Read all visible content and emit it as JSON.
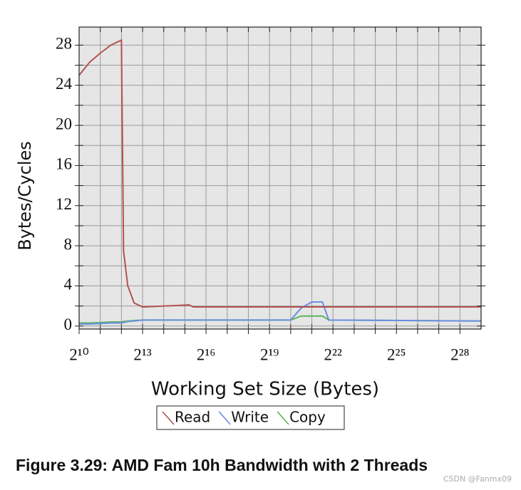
{
  "chart_data": {
    "type": "line",
    "title": "Figure 3.29: AMD Fam 10h Bandwidth with 2 Threads",
    "x_label": "Working Set Size (Bytes)",
    "y_label": "Bytes/Cycles",
    "x_scale": "log2",
    "x": [
      1024,
      1448,
      2048,
      2896,
      4096,
      4390,
      5043,
      6208,
      8192,
      37641,
      43238,
      1048576,
      1482910,
      2097152,
      2965821,
      3651400,
      536870912
    ],
    "series": [
      {
        "name": "Read",
        "color": "#b5524e",
        "values": [
          25,
          26.3,
          27.2,
          28,
          28.5,
          7.5,
          4,
          2.3,
          1.9,
          2.1,
          1.9,
          1.9,
          1.9,
          1.9,
          1.9,
          1.9,
          1.9
        ]
      },
      {
        "name": "Write",
        "color": "#6a8fe0",
        "values": [
          0.2,
          0.2,
          0.25,
          0.3,
          0.3,
          0.35,
          0.45,
          0.5,
          0.6,
          0.6,
          0.6,
          0.6,
          1.8,
          2.4,
          2.4,
          0.6,
          0.5
        ]
      },
      {
        "name": "Copy",
        "color": "#5bb35b",
        "values": [
          0.3,
          0.3,
          0.35,
          0.4,
          0.4,
          0.45,
          0.5,
          0.55,
          0.6,
          0.6,
          0.6,
          0.6,
          1.0,
          1.0,
          1.0,
          0.6,
          0.5
        ]
      }
    ],
    "xlim": [
      1024,
      536870912
    ],
    "xticks": [
      {
        "value": 1024,
        "label": "2¹⁰"
      },
      {
        "value": 8192,
        "label": "2¹³"
      },
      {
        "value": 65536,
        "label": "2¹⁶"
      },
      {
        "value": 524288,
        "label": "2¹⁹"
      },
      {
        "value": 4194304,
        "label": "2²²"
      },
      {
        "value": 33554432,
        "label": "2²⁵"
      },
      {
        "value": 268435456,
        "label": "2²⁸"
      }
    ],
    "xminorticks": [
      2048,
      4096,
      16384,
      32768,
      131072,
      262144,
      1048576,
      2097152,
      8388608,
      16777216,
      67108864,
      134217728
    ],
    "ylim": [
      -0.3,
      29.8
    ],
    "yticks": [
      0,
      4,
      8,
      12,
      16,
      20,
      24,
      28
    ],
    "yminorticks": [
      2,
      6,
      10,
      14,
      18,
      22,
      26
    ],
    "grid": true,
    "legend": "bottom",
    "watermark": "CSDN @Fanmx09"
  }
}
